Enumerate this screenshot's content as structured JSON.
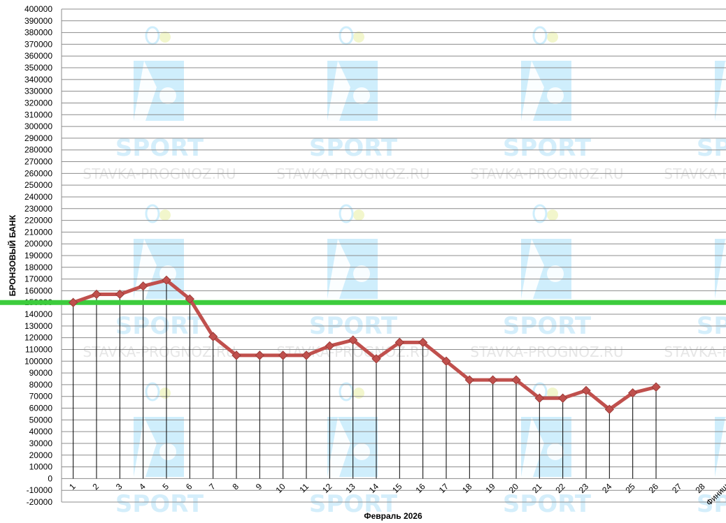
{
  "chart_data": {
    "type": "line",
    "xlabel": "Февраль 2026",
    "ylabel": "БРОНЗОВЫЙ БАНК",
    "ylim": [
      -20000,
      400000
    ],
    "ystep": 10000,
    "grid": true,
    "categories": [
      "1",
      "2",
      "3",
      "4",
      "5",
      "6",
      "7",
      "8",
      "9",
      "10",
      "11",
      "12",
      "13",
      "14",
      "15",
      "16",
      "17",
      "18",
      "19",
      "20",
      "21",
      "22",
      "23",
      "24",
      "25",
      "26",
      "27",
      "28",
      "Финиш"
    ],
    "series": [
      {
        "values": [
          150000,
          157000,
          157000,
          164000,
          169000,
          153000,
          121000,
          105000,
          105000,
          105000,
          105000,
          113000,
          118000,
          102000,
          116000,
          116000,
          100000,
          84000,
          84000,
          84000,
          68500,
          68500,
          75000,
          59000,
          73000,
          78000,
          null,
          null,
          null
        ],
        "color": "#c0504d"
      }
    ],
    "reference_line": {
      "value": 150000,
      "color": "#3ccc3c"
    },
    "watermark": {
      "brand": "SPORT",
      "site": "STAVKA-PROGNOZ.RU",
      "icon": "tennis-player-icon"
    }
  }
}
